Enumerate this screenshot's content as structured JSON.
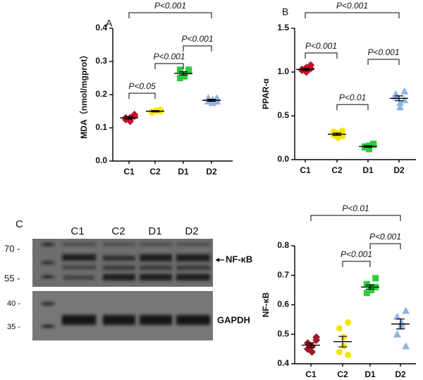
{
  "chart_data": [
    {
      "type": "strip",
      "panel": "A",
      "ylabel": "MDA（nmol/mgprot）",
      "categories": [
        "C1",
        "C2",
        "D1",
        "D2"
      ],
      "colors": [
        "#c8102e",
        "#f2e600",
        "#2ecc40",
        "#8fb4e3"
      ],
      "markers": [
        "diamond",
        "circle",
        "square",
        "triangle"
      ],
      "values": [
        [
          0.135,
          0.125,
          0.13,
          0.12,
          0.13,
          0.14
        ],
        [
          0.15,
          0.148,
          0.152,
          0.15,
          0.146,
          0.154
        ],
        [
          0.27,
          0.275,
          0.26,
          0.255,
          0.25,
          0.275
        ],
        [
          0.19,
          0.18,
          0.185,
          0.175,
          0.19,
          0.18
        ]
      ],
      "means": [
        0.13,
        0.15,
        0.264,
        0.183
      ],
      "errors": [
        0.004,
        0.002,
        0.005,
        0.003
      ],
      "ylim": [
        0,
        0.4
      ],
      "yticks": [
        {
          "value": 0,
          "label": "0.0"
        },
        0.1,
        0.2,
        0.3,
        0.4
      ],
      "annotations": [
        "P<0.001",
        "P<0.001",
        "P<0.001",
        "P<0.05"
      ]
    },
    {
      "type": "strip",
      "panel": "B",
      "ylabel": "PPAR-α",
      "categories": [
        "C1",
        "C2",
        "D1",
        "D2"
      ],
      "colors": [
        "#c8102e",
        "#f2e600",
        "#2ecc40",
        "#8fb4e3"
      ],
      "markers": [
        "diamond",
        "circle",
        "square",
        "triangle"
      ],
      "values": [
        [
          1.08,
          1.02,
          1.0,
          1.05,
          1.03,
          1.04
        ],
        [
          0.33,
          0.28,
          0.25,
          0.3,
          0.32,
          0.27
        ],
        [
          0.18,
          0.14,
          0.12,
          0.16,
          0.15,
          0.17
        ],
        [
          0.78,
          0.72,
          0.65,
          0.6,
          0.75,
          0.68
        ]
      ],
      "means": [
        1.03,
        0.29,
        0.15,
        0.7
      ],
      "errors": [
        0.012,
        0.013,
        0.009,
        0.028
      ],
      "ylim": [
        0,
        1.5
      ],
      "yticks": [
        {
          "value": 0,
          "label": "0.0"
        },
        0.5,
        {
          "value": 1,
          "label": "1.0"
        },
        1.5
      ],
      "annotations": [
        "P<0.001",
        "P<0.001",
        "P<0.001",
        "P<0.01"
      ]
    },
    {
      "type": "strip",
      "ylabel": "NF-κB",
      "categories": [
        "C1",
        "C2",
        "D1",
        "D2"
      ],
      "colors": [
        "#a0182a",
        "#f2e600",
        "#2ecc40",
        "#8fb4e3"
      ],
      "markers": [
        "diamond",
        "circle",
        "square",
        "triangle"
      ],
      "values": [
        [
          0.49,
          0.47,
          0.46,
          0.44,
          0.45,
          0.48
        ],
        [
          0.54,
          0.52,
          0.49,
          0.46,
          0.44,
          0.43
        ],
        [
          0.69,
          0.67,
          0.66,
          0.65,
          0.64,
          0.66
        ],
        [
          0.58,
          0.56,
          0.54,
          0.53,
          0.5,
          0.46
        ]
      ],
      "means": [
        0.463,
        0.475,
        0.66,
        0.535
      ],
      "errors": [
        0.008,
        0.018,
        0.007,
        0.017
      ],
      "ylim": [
        0.4,
        0.8
      ],
      "yticks": [
        0.4,
        0.5,
        0.6,
        0.7,
        0.8
      ],
      "annotations": [
        "P<0.01",
        "P<0.001",
        "P<0.001"
      ]
    }
  ],
  "blot": {
    "panel": "C",
    "lanes": [
      "C1",
      "C2",
      "D1",
      "D2"
    ],
    "markers": [
      "70 -",
      "55 -",
      "40 -",
      "35 -"
    ],
    "bands": [
      "NF-κB",
      "GAPDH"
    ]
  }
}
